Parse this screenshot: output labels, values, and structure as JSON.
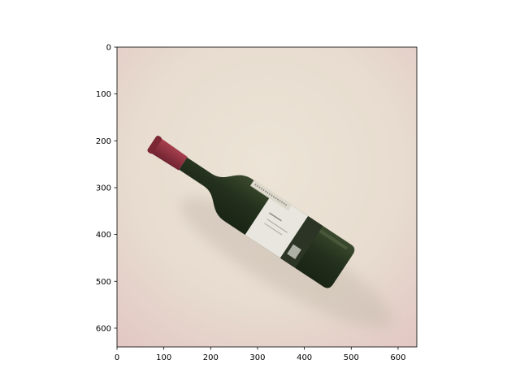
{
  "axes": {
    "x_ticks": [
      "0",
      "100",
      "200",
      "300",
      "400",
      "500",
      "600"
    ],
    "y_ticks": [
      "0",
      "100",
      "200",
      "300",
      "400",
      "500",
      "600"
    ],
    "x_tick_values": [
      0,
      100,
      200,
      300,
      400,
      500,
      600
    ],
    "y_tick_values": [
      0,
      100,
      200,
      300,
      400,
      500,
      600
    ],
    "xlim": [
      0,
      640
    ],
    "ylim": [
      640,
      0
    ]
  },
  "photo": {
    "subject": "wine-bottle",
    "colors": {
      "background": "#e9dfd3",
      "glass": "#27351f",
      "capsule": "#8a2e3a",
      "label": "#e8e6df"
    }
  }
}
